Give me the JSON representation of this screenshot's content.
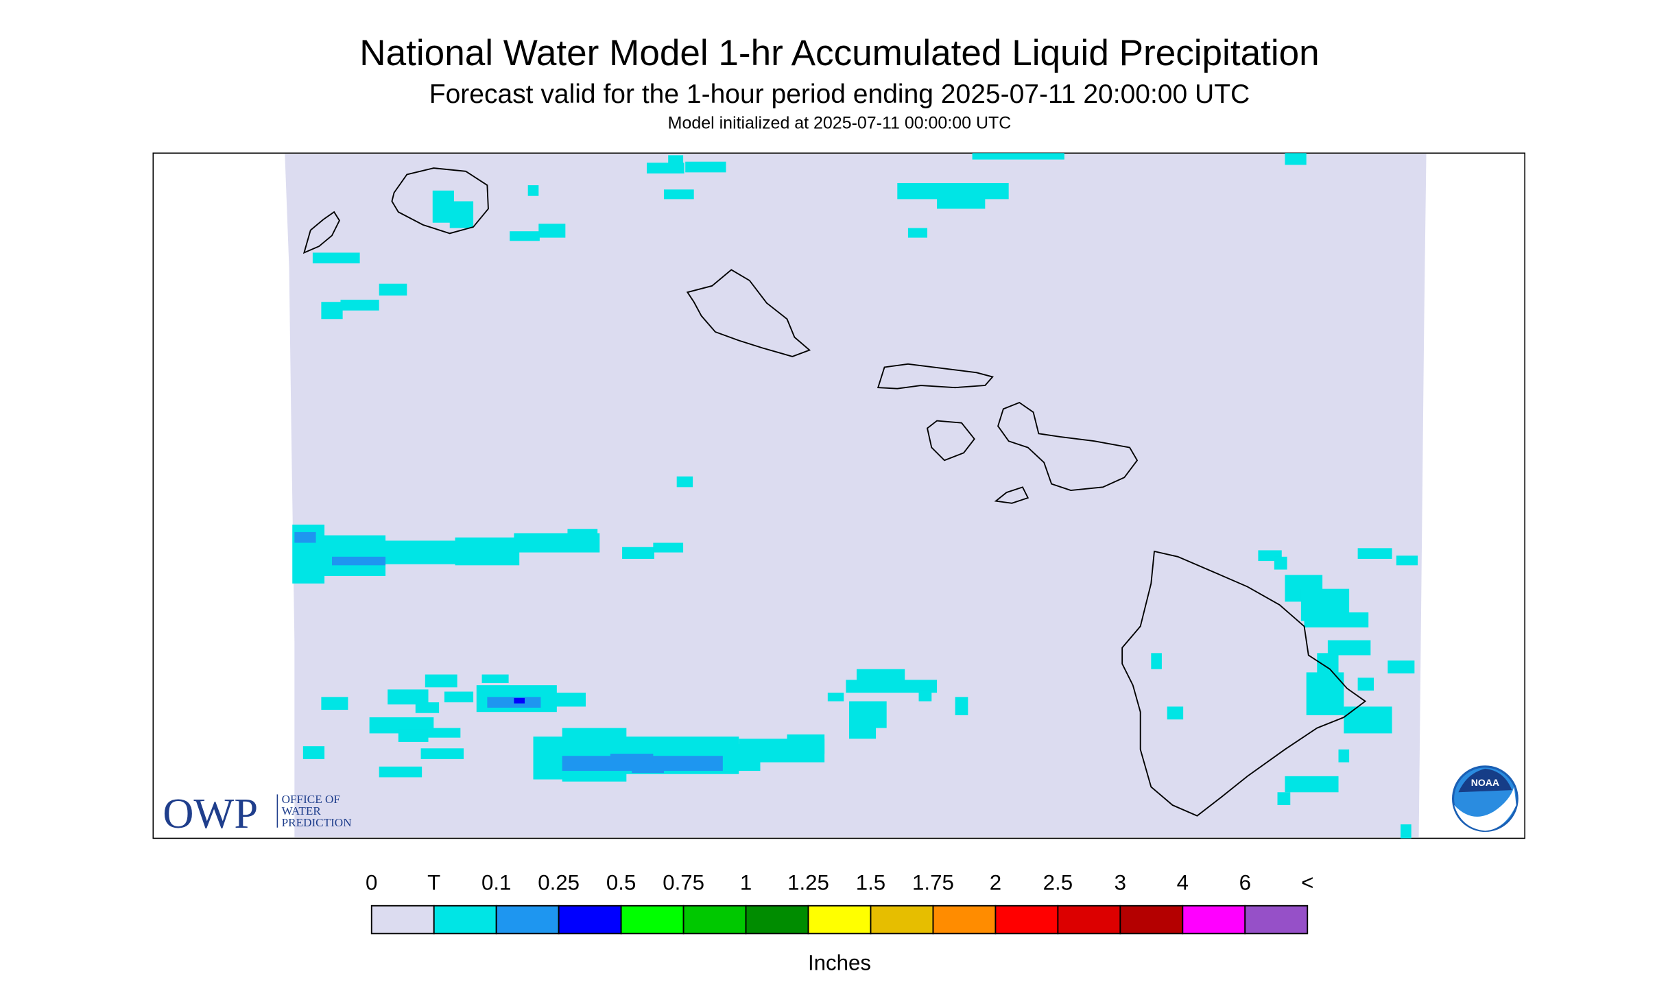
{
  "header": {
    "title": "National Water Model 1-hr Accumulated Liquid Precipitation",
    "subtitle": "Forecast valid for the 1-hour period ending 2025-07-11 20:00:00 UTC",
    "init": "Model initialized at 2025-07-11 00:00:00 UTC"
  },
  "legend": {
    "labels": [
      "0",
      "T",
      "0.1",
      "0.25",
      "0.5",
      "0.75",
      "1",
      "1.25",
      "1.5",
      "1.75",
      "2",
      "2.5",
      "3",
      "4",
      "6",
      "<"
    ],
    "colors": [
      "#dcdcf0",
      "#00e5e5",
      "#1e96f0",
      "#0000ff",
      "#00ff00",
      "#00c800",
      "#008c00",
      "#ffff00",
      "#e6be00",
      "#ff8c00",
      "#ff0000",
      "#dc0000",
      "#b40000",
      "#ff00ff",
      "#9650c8"
    ],
    "unit": "Inches"
  },
  "logos": {
    "owp": "OWP",
    "owp_lines": [
      "OFFICE OF",
      "WATER",
      "PREDICTION"
    ],
    "noaa": "NOAA"
  }
}
